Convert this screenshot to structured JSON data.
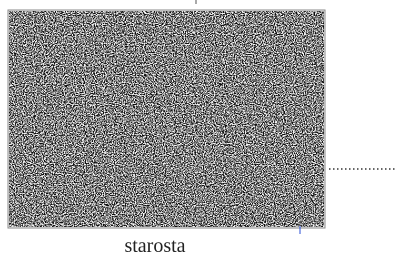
{
  "caption": "starosta"
}
